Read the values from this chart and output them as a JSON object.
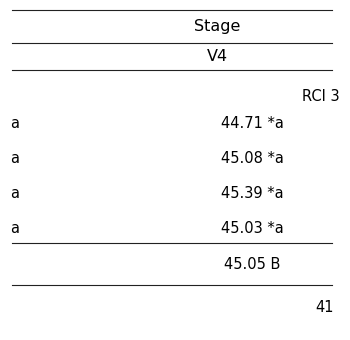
{
  "header1": "Stage",
  "header2": "V4",
  "subheader": "RCI 3",
  "rows": [
    {
      "left": "a",
      "value": "44.71 *a"
    },
    {
      "left": "a",
      "value": "45.08 *a"
    },
    {
      "left": "a",
      "value": "45.39 *a"
    },
    {
      "left": "a",
      "value": "45.03 *a"
    }
  ],
  "mean_row": {
    "value": "45.05 B"
  },
  "page_number": "41",
  "bg_color": "#ffffff",
  "text_color": "#000000",
  "font_size": 10.5,
  "line_color": "#222222",
  "line_width": 0.8
}
